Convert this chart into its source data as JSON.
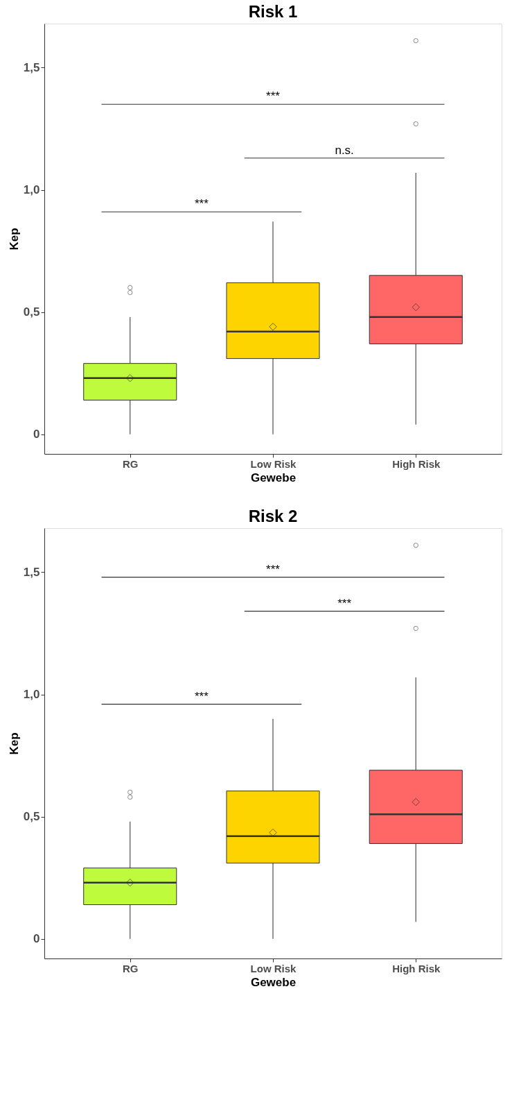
{
  "chart_data": [
    {
      "type": "box",
      "title": "Risk 1",
      "xlabel": "Gewebe",
      "ylabel": "Kep",
      "categories": [
        "RG",
        "Low Risk",
        "High Risk"
      ],
      "colors": [
        "#bffb3d",
        "#fdd300",
        "#ff6666"
      ],
      "boxes": [
        {
          "low": 0,
          "q1": 0.14,
          "median": 0.23,
          "q3": 0.29,
          "high": 0.48,
          "mean": 0.23,
          "outliers": [
            0.58,
            0.6
          ]
        },
        {
          "low": 0,
          "q1": 0.31,
          "median": 0.42,
          "q3": 0.62,
          "high": 0.87,
          "mean": 0.44
        },
        {
          "low": 0.04,
          "q1": 0.37,
          "median": 0.48,
          "q3": 0.65,
          "high": 1.07,
          "mean": 0.52,
          "outliers": [
            1.27,
            1.61
          ]
        }
      ],
      "ylim": [
        -0.08,
        1.68
      ],
      "yticks": [
        0,
        {
          "value": 0.5,
          "label": "0,5"
        },
        {
          "value": 1.0,
          "label": "1,0"
        },
        {
          "value": 1.5,
          "label": "1,5"
        }
      ],
      "grid": false,
      "annotations": [
        "***",
        "n.s.",
        "***"
      ]
    },
    {
      "type": "box",
      "title": "Risk 2",
      "xlabel": "Gewebe",
      "ylabel": "Kep",
      "categories": [
        "RG",
        "Low Risk",
        "High Risk"
      ],
      "colors": [
        "#bffb3d",
        "#fdd300",
        "#ff6666"
      ],
      "boxes": [
        {
          "low": 0,
          "q1": 0.14,
          "median": 0.23,
          "q3": 0.29,
          "high": 0.48,
          "mean": 0.23,
          "outliers": [
            0.58,
            0.6
          ]
        },
        {
          "low": 0,
          "q1": 0.31,
          "median": 0.42,
          "q3": 0.605,
          "high": 0.9,
          "mean": 0.435
        },
        {
          "low": 0.07,
          "q1": 0.39,
          "median": 0.51,
          "q3": 0.69,
          "high": 1.07,
          "mean": 0.56,
          "outliers": [
            1.27,
            1.61
          ]
        }
      ],
      "ylim": [
        -0.08,
        1.68
      ],
      "yticks": [
        0,
        {
          "value": 0.5,
          "label": "0,5"
        },
        {
          "value": 1.0,
          "label": "1,0"
        },
        {
          "value": 1.5,
          "label": "1,5"
        }
      ],
      "grid": false,
      "annotations": [
        "***",
        "***",
        "***"
      ]
    }
  ]
}
